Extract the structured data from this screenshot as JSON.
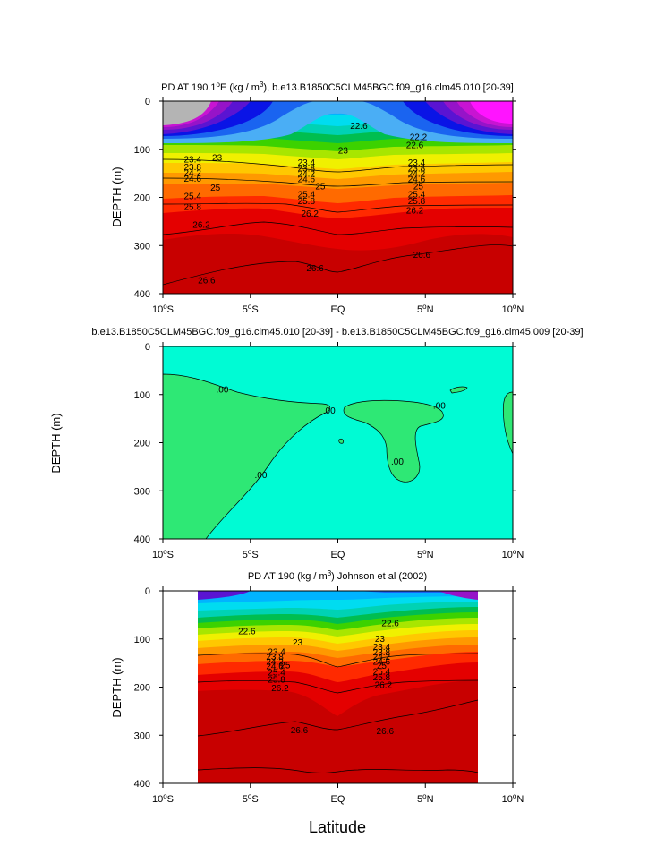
{
  "figure": {
    "xlabel": "Latitude"
  },
  "chart_data": [
    {
      "type": "heatmap",
      "title_main": "PD AT 190.1",
      "title_sup": "o",
      "title_mid": "E (kg / m",
      "title_sup2": "3",
      "title_end": "), b.e13.B1850C5CLM45BGC.f09_g16.clm45.010 [20-39]",
      "ylabel": "DEPTH (m)",
      "xlim": [
        -10,
        10
      ],
      "ylim": [
        400,
        0
      ],
      "x_ticks": [
        {
          "value": -10,
          "label": "10",
          "sup": "o",
          "suffix": "S"
        },
        {
          "value": -5,
          "label": "5",
          "sup": "o",
          "suffix": "S"
        },
        {
          "value": 0,
          "label": "EQ",
          "sup": "",
          "suffix": ""
        },
        {
          "value": 5,
          "label": "5",
          "sup": "o",
          "suffix": "N"
        },
        {
          "value": 10,
          "label": "10",
          "sup": "o",
          "suffix": "N"
        }
      ],
      "y_ticks": [
        0,
        100,
        200,
        300,
        400
      ],
      "contour_labels": [
        {
          "text": "22.6",
          "x": 1.2,
          "depth": 52
        },
        {
          "text": "22.6",
          "x": 4.4,
          "depth": 92
        },
        {
          "text": "23",
          "x": 0.3,
          "depth": 103
        },
        {
          "text": "22.2",
          "x": 4.6,
          "depth": 75
        },
        {
          "text": "23",
          "x": -6.9,
          "depth": 118
        },
        {
          "text": "23.4",
          "x": -8.3,
          "depth": 122
        },
        {
          "text": "23.4",
          "x": -1.8,
          "depth": 128
        },
        {
          "text": "23.4",
          "x": 4.5,
          "depth": 128
        },
        {
          "text": "23.8",
          "x": -8.3,
          "depth": 138
        },
        {
          "text": "23.8",
          "x": -1.8,
          "depth": 140
        },
        {
          "text": "23.8",
          "x": 4.5,
          "depth": 140
        },
        {
          "text": "24.2",
          "x": -8.3,
          "depth": 150
        },
        {
          "text": "24.2",
          "x": -1.8,
          "depth": 152
        },
        {
          "text": "24.2",
          "x": 4.5,
          "depth": 152
        },
        {
          "text": "24.6",
          "x": -8.3,
          "depth": 162
        },
        {
          "text": "24.6",
          "x": -1.8,
          "depth": 163
        },
        {
          "text": "24.6",
          "x": 4.5,
          "depth": 163
        },
        {
          "text": "25",
          "x": -7.0,
          "depth": 180
        },
        {
          "text": "25",
          "x": -1.0,
          "depth": 178
        },
        {
          "text": "25",
          "x": 4.6,
          "depth": 178
        },
        {
          "text": "25.4",
          "x": -8.3,
          "depth": 198
        },
        {
          "text": "25.4",
          "x": -1.8,
          "depth": 194
        },
        {
          "text": "25.4",
          "x": 4.5,
          "depth": 194
        },
        {
          "text": "25.8",
          "x": -8.3,
          "depth": 220
        },
        {
          "text": "25.8",
          "x": -1.8,
          "depth": 208
        },
        {
          "text": "25.8",
          "x": 4.5,
          "depth": 208
        },
        {
          "text": "26.2",
          "x": -7.8,
          "depth": 258
        },
        {
          "text": "26.2",
          "x": -1.6,
          "depth": 234
        },
        {
          "text": "26.2",
          "x": 4.4,
          "depth": 228
        },
        {
          "text": "26.6",
          "x": -7.5,
          "depth": 373
        },
        {
          "text": "26.6",
          "x": -1.3,
          "depth": 348
        },
        {
          "text": "26.6",
          "x": 4.8,
          "depth": 320
        }
      ]
    },
    {
      "type": "heatmap",
      "title": "b.e13.B1850C5CLM45BGC.f09_g16.clm45.010 [20-39] - b.e13.B1850C5CLM45BGC.f09_g16.clm45.009 [20-39]",
      "ylabel": "DEPTH (m)",
      "xlim": [
        -10,
        10
      ],
      "ylim": [
        400,
        0
      ],
      "x_ticks": [
        {
          "value": -10,
          "label": "10",
          "sup": "o",
          "suffix": "S"
        },
        {
          "value": -5,
          "label": "5",
          "sup": "o",
          "suffix": "S"
        },
        {
          "value": 0,
          "label": "EQ",
          "sup": "",
          "suffix": ""
        },
        {
          "value": 5,
          "label": "5",
          "sup": "o",
          "suffix": "N"
        },
        {
          "value": 10,
          "label": "10",
          "sup": "o",
          "suffix": "N"
        }
      ],
      "y_ticks": [
        0,
        100,
        200,
        300,
        400
      ],
      "contour_labels": [
        {
          "text": ".00",
          "x": -6.6,
          "depth": 90
        },
        {
          "text": ".00",
          "x": -0.5,
          "depth": 134
        },
        {
          "text": ".00",
          "x": 5.8,
          "depth": 124
        },
        {
          "text": ".00",
          "x": 3.4,
          "depth": 240
        },
        {
          "text": ".00",
          "x": -4.4,
          "depth": 268
        }
      ],
      "colors": {
        "background": "#00fbd4",
        "positive": "#2ee875"
      }
    },
    {
      "type": "heatmap",
      "title_main": "PD AT 190 (kg / m",
      "title_sup": "3",
      "title_end": ") Johnson et al (2002)",
      "ylabel": "DEPTH (m)",
      "xlim": [
        -10,
        10
      ],
      "ylim": [
        400,
        0
      ],
      "data_xlim": [
        -8,
        8
      ],
      "x_ticks": [
        {
          "value": -10,
          "label": "10",
          "sup": "o",
          "suffix": "S"
        },
        {
          "value": -5,
          "label": "5",
          "sup": "o",
          "suffix": "S"
        },
        {
          "value": 0,
          "label": "EQ",
          "sup": "",
          "suffix": ""
        },
        {
          "value": 5,
          "label": "5",
          "sup": "o",
          "suffix": "N"
        },
        {
          "value": 10,
          "label": "10",
          "sup": "o",
          "suffix": "N"
        }
      ],
      "y_ticks": [
        0,
        100,
        200,
        300,
        400
      ],
      "contour_labels": [
        {
          "text": "22.6",
          "x": 3.0,
          "depth": 68
        },
        {
          "text": "22.6",
          "x": -5.2,
          "depth": 85
        },
        {
          "text": "23",
          "x": 2.4,
          "depth": 100
        },
        {
          "text": "23",
          "x": -2.3,
          "depth": 108
        },
        {
          "text": "23.4",
          "x": -3.5,
          "depth": 127
        },
        {
          "text": "23.4",
          "x": 2.5,
          "depth": 117
        },
        {
          "text": "23.8",
          "x": -3.6,
          "depth": 138
        },
        {
          "text": "23.8",
          "x": 2.5,
          "depth": 128
        },
        {
          "text": "24.2",
          "x": -3.6,
          "depth": 148
        },
        {
          "text": "24.2",
          "x": 2.5,
          "depth": 138
        },
        {
          "text": "24.6",
          "x": -3.6,
          "depth": 157
        },
        {
          "text": "24.6",
          "x": 2.5,
          "depth": 148
        },
        {
          "text": "25",
          "x": -3.0,
          "depth": 155
        },
        {
          "text": "25",
          "x": 2.5,
          "depth": 156
        },
        {
          "text": "25.4",
          "x": -3.5,
          "depth": 170
        },
        {
          "text": "25.4",
          "x": 2.5,
          "depth": 168
        },
        {
          "text": "25.8",
          "x": -3.5,
          "depth": 185
        },
        {
          "text": "25.8",
          "x": 2.5,
          "depth": 180
        },
        {
          "text": "26.2",
          "x": -3.3,
          "depth": 203
        },
        {
          "text": "26.2",
          "x": 2.6,
          "depth": 196
        },
        {
          "text": "26.6",
          "x": -2.2,
          "depth": 290
        },
        {
          "text": "26.6",
          "x": 2.7,
          "depth": 292
        }
      ]
    }
  ]
}
